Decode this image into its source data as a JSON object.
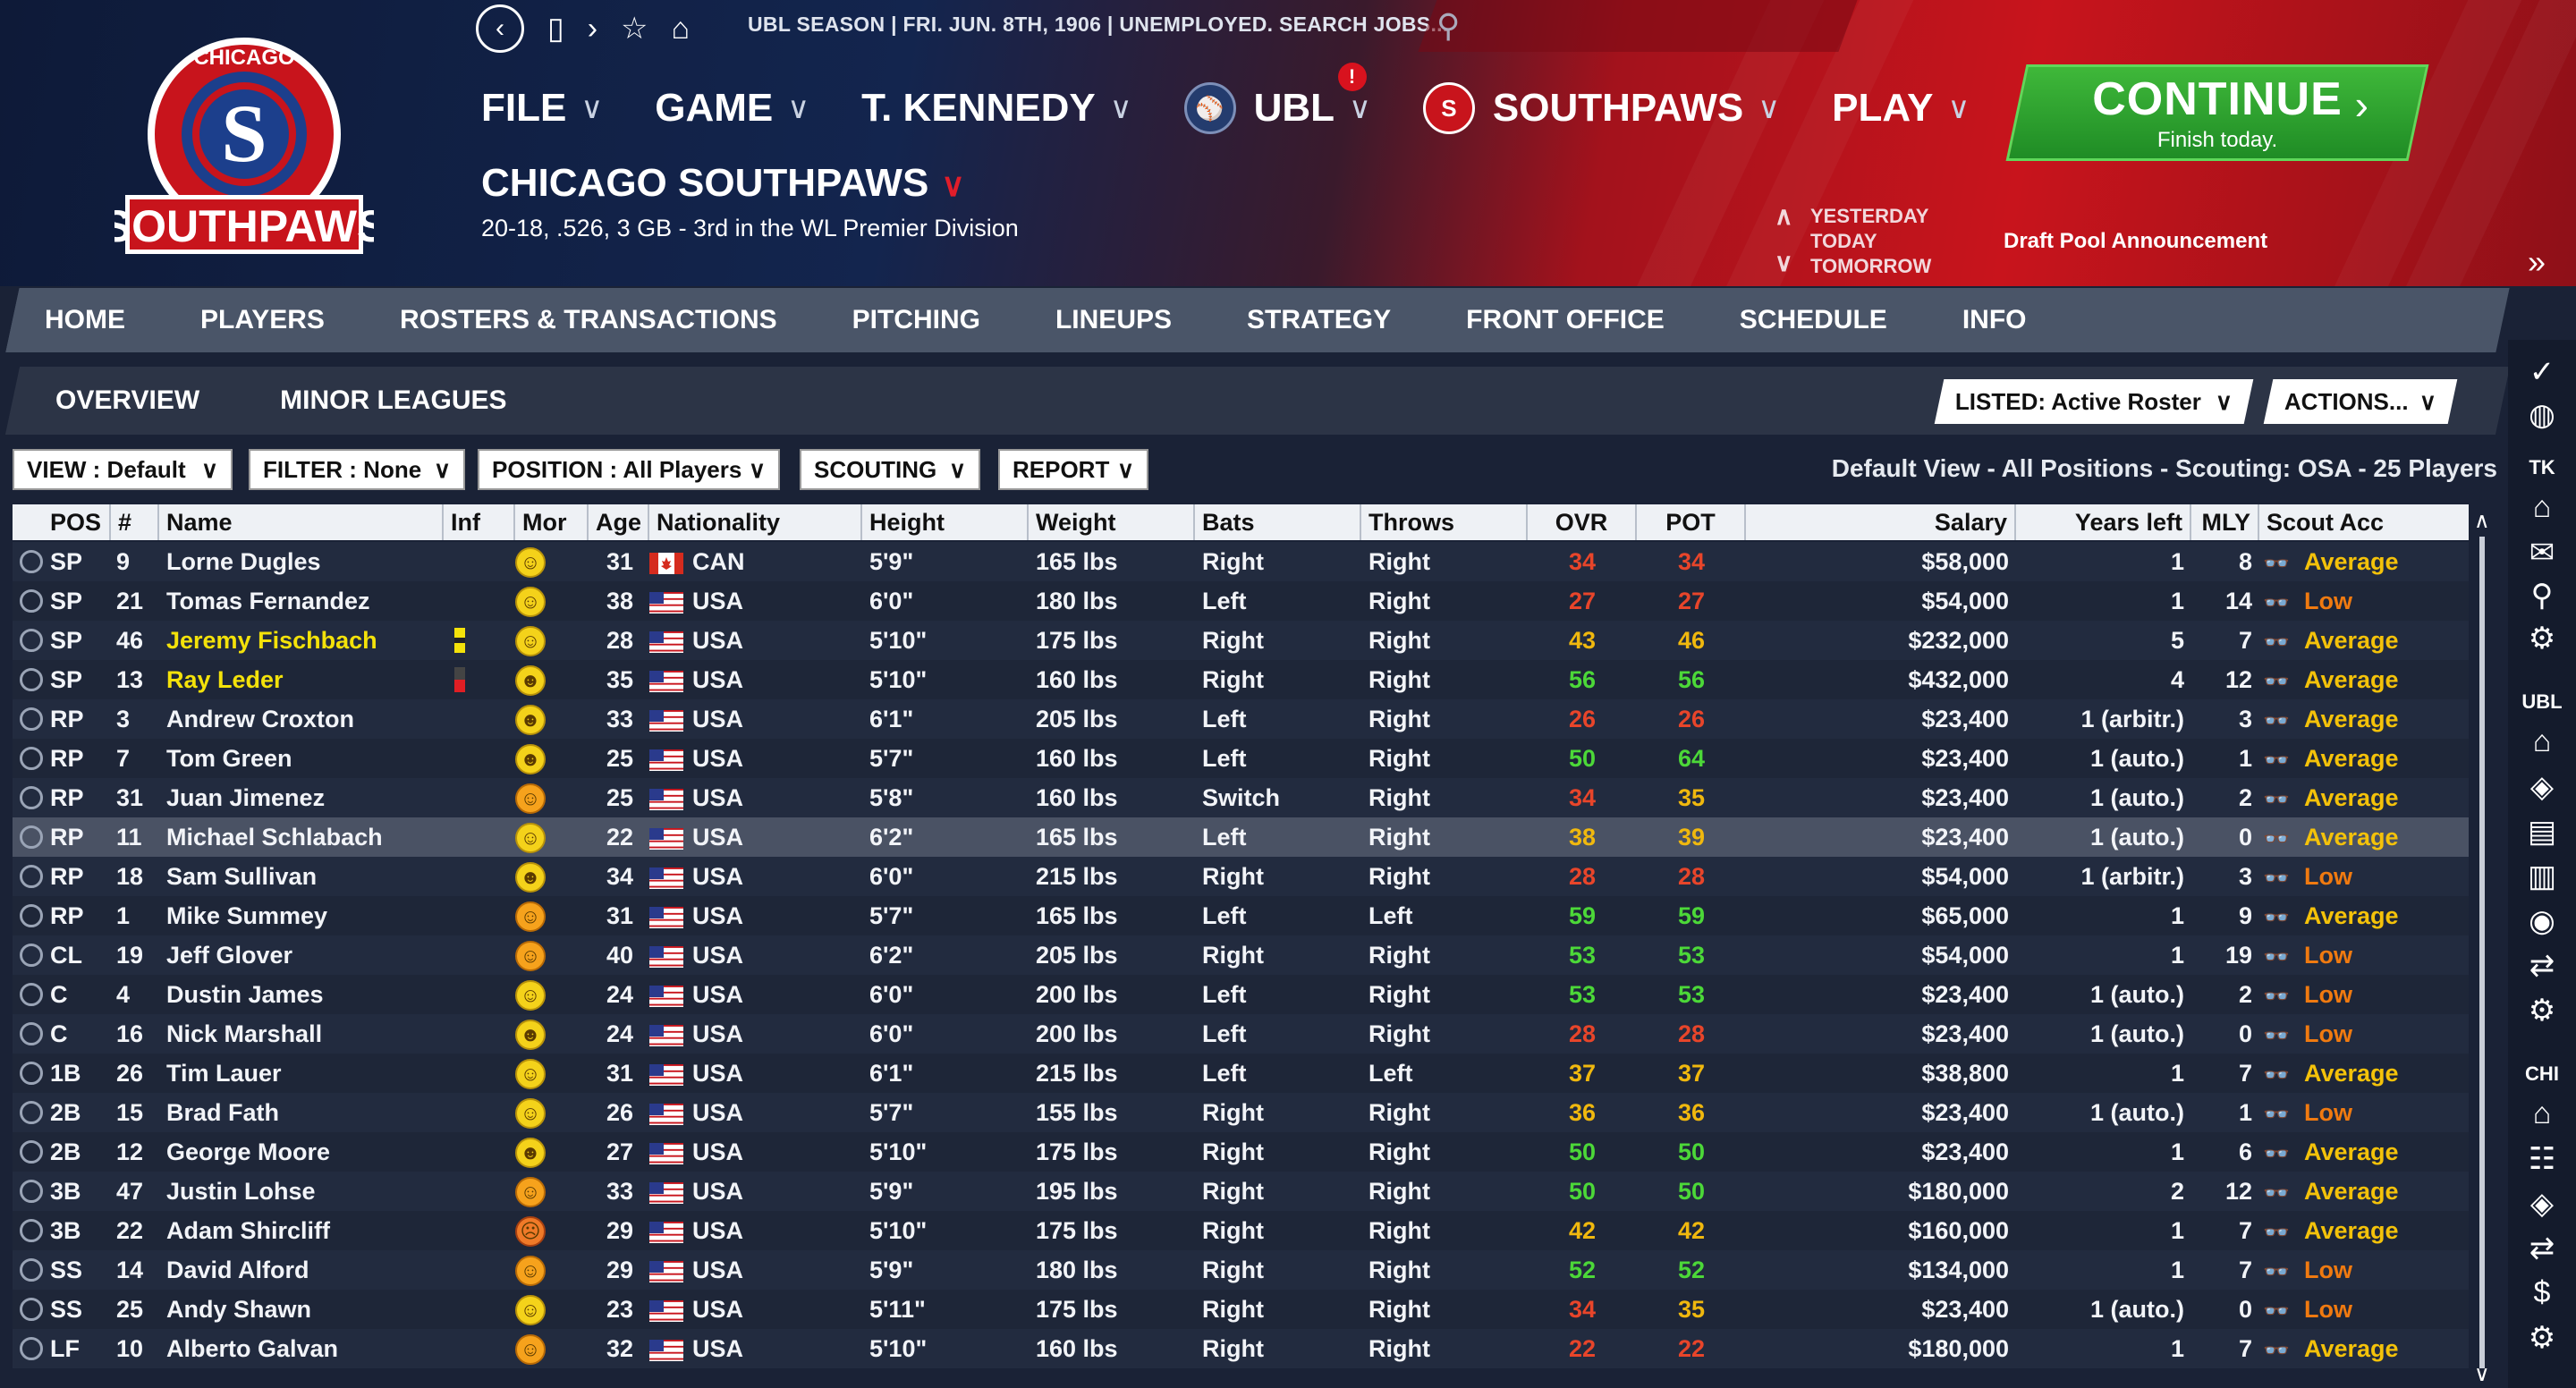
{
  "logo": {
    "top_text": "CHICAGO",
    "bottom_text": "SOUTHPAWS"
  },
  "topbar": {
    "ticker": "UBL SEASON  |  FRI. JUN. 8TH, 1906  |  UNEMPLOYED. SEARCH JOBS...",
    "search_placeholder": ""
  },
  "menu": {
    "file": "FILE",
    "game": "GAME",
    "manager": "T. KENNEDY",
    "league": "UBL",
    "league_alert": "!",
    "team": "SOUTHPAWS",
    "play": "PLAY"
  },
  "continue": {
    "label": "CONTINUE",
    "sub": "Finish today."
  },
  "team": {
    "name": "CHICAGO SOUTHPAWS",
    "record": "20-18, .526, 3 GB - 3rd in the WL Premier Division"
  },
  "dates": {
    "yesterday": "YESTERDAY",
    "today": "TODAY",
    "tomorrow": "TOMORROW",
    "event": "Draft Pool Announcement"
  },
  "tabs": [
    "HOME",
    "PLAYERS",
    "ROSTERS & TRANSACTIONS",
    "PITCHING",
    "LINEUPS",
    "STRATEGY",
    "FRONT OFFICE",
    "SCHEDULE",
    "INFO"
  ],
  "subtabs": [
    "OVERVIEW",
    "MINOR LEAGUES"
  ],
  "listed": "LISTED: Active Roster",
  "actions": "ACTIONS...",
  "filters": {
    "view": "VIEW : Default",
    "filter": "FILTER : None",
    "position": "POSITION : All Players",
    "scouting": "SCOUTING",
    "report": "REPORT"
  },
  "view_description": "Default View - All Positions - Scouting: OSA - 25 Players",
  "columns": [
    "POS",
    "#",
    "Name",
    "Inf",
    "Mor",
    "Age",
    "Nationality",
    "Height",
    "Weight",
    "Bats",
    "Throws",
    "OVR",
    "POT",
    "Salary",
    "Years left",
    "MLY",
    "Scout Acc"
  ],
  "colors": {
    "ovr_low": "#e8452a",
    "ovr_mid": "#f0b80e",
    "ovr_high": "#4cd838",
    "scout_avg": "#f4c20a",
    "scout_low": "#f07a10",
    "highlight_name": "#f4e20a"
  },
  "players": [
    {
      "pos": "SP",
      "num": "9",
      "name": "Lorne Dugles",
      "mor": "happy",
      "age": "31",
      "nat": "CAN",
      "height": "5'9\"",
      "weight": "165 lbs",
      "bats": "Right",
      "throws": "Right",
      "ovr": "34",
      "pot": "34",
      "salary": "$58,000",
      "years": "1",
      "mly": "8",
      "acc": "Average"
    },
    {
      "pos": "SP",
      "num": "21",
      "name": "Tomas Fernandez",
      "mor": "happy",
      "age": "38",
      "nat": "USA",
      "height": "6'0\"",
      "weight": "180 lbs",
      "bats": "Left",
      "throws": "Right",
      "ovr": "27",
      "pot": "27",
      "salary": "$54,000",
      "years": "1",
      "mly": "14",
      "acc": "Low"
    },
    {
      "pos": "SP",
      "num": "46",
      "name": "Jeremy Fischbach",
      "mor": "happy",
      "age": "28",
      "nat": "USA",
      "height": "5'10\"",
      "weight": "175 lbs",
      "bats": "Right",
      "throws": "Right",
      "ovr": "43",
      "pot": "46",
      "salary": "$232,000",
      "years": "5",
      "mly": "7",
      "acc": "Average",
      "hl": true,
      "inf": "yellow"
    },
    {
      "pos": "SP",
      "num": "13",
      "name": "Ray Leder",
      "mor": "grin",
      "age": "35",
      "nat": "USA",
      "height": "5'10\"",
      "weight": "160 lbs",
      "bats": "Right",
      "throws": "Right",
      "ovr": "56",
      "pot": "56",
      "salary": "$432,000",
      "years": "4",
      "mly": "12",
      "acc": "Average",
      "hl": true,
      "inf": "red"
    },
    {
      "pos": "RP",
      "num": "3",
      "name": "Andrew Croxton",
      "mor": "grin",
      "age": "33",
      "nat": "USA",
      "height": "6'1\"",
      "weight": "205 lbs",
      "bats": "Left",
      "throws": "Right",
      "ovr": "26",
      "pot": "26",
      "salary": "$23,400",
      "years": "1 (arbitr.)",
      "mly": "3",
      "acc": "Average"
    },
    {
      "pos": "RP",
      "num": "7",
      "name": "Tom Green",
      "mor": "grin",
      "age": "25",
      "nat": "USA",
      "height": "5'7\"",
      "weight": "160 lbs",
      "bats": "Left",
      "throws": "Right",
      "ovr": "50",
      "pot": "64",
      "salary": "$23,400",
      "years": "1 (auto.)",
      "mly": "1",
      "acc": "Average"
    },
    {
      "pos": "RP",
      "num": "31",
      "name": "Juan Jimenez",
      "mor": "smile",
      "age": "25",
      "nat": "USA",
      "height": "5'8\"",
      "weight": "160 lbs",
      "bats": "Switch",
      "throws": "Right",
      "ovr": "34",
      "pot": "35",
      "salary": "$23,400",
      "years": "1 (auto.)",
      "mly": "2",
      "acc": "Average"
    },
    {
      "pos": "RP",
      "num": "11",
      "name": "Michael Schlabach",
      "mor": "happy",
      "age": "22",
      "nat": "USA",
      "height": "6'2\"",
      "weight": "165 lbs",
      "bats": "Left",
      "throws": "Right",
      "ovr": "38",
      "pot": "39",
      "salary": "$23,400",
      "years": "1 (auto.)",
      "mly": "0",
      "acc": "Average",
      "sel": true
    },
    {
      "pos": "RP",
      "num": "18",
      "name": "Sam Sullivan",
      "mor": "grin",
      "age": "34",
      "nat": "USA",
      "height": "6'0\"",
      "weight": "215 lbs",
      "bats": "Right",
      "throws": "Right",
      "ovr": "28",
      "pot": "28",
      "salary": "$54,000",
      "years": "1 (arbitr.)",
      "mly": "3",
      "acc": "Low"
    },
    {
      "pos": "RP",
      "num": "1",
      "name": "Mike Summey",
      "mor": "smile",
      "age": "31",
      "nat": "USA",
      "height": "5'7\"",
      "weight": "165 lbs",
      "bats": "Left",
      "throws": "Left",
      "ovr": "59",
      "pot": "59",
      "salary": "$65,000",
      "years": "1",
      "mly": "9",
      "acc": "Average"
    },
    {
      "pos": "CL",
      "num": "19",
      "name": "Jeff Glover",
      "mor": "smile",
      "age": "40",
      "nat": "USA",
      "height": "6'2\"",
      "weight": "205 lbs",
      "bats": "Right",
      "throws": "Right",
      "ovr": "53",
      "pot": "53",
      "salary": "$54,000",
      "years": "1",
      "mly": "19",
      "acc": "Low"
    },
    {
      "pos": "C",
      "num": "4",
      "name": "Dustin James",
      "mor": "happy",
      "age": "24",
      "nat": "USA",
      "height": "6'0\"",
      "weight": "200 lbs",
      "bats": "Left",
      "throws": "Right",
      "ovr": "53",
      "pot": "53",
      "salary": "$23,400",
      "years": "1 (auto.)",
      "mly": "2",
      "acc": "Low"
    },
    {
      "pos": "C",
      "num": "16",
      "name": "Nick Marshall",
      "mor": "grin",
      "age": "24",
      "nat": "USA",
      "height": "6'0\"",
      "weight": "200 lbs",
      "bats": "Left",
      "throws": "Right",
      "ovr": "28",
      "pot": "28",
      "salary": "$23,400",
      "years": "1 (auto.)",
      "mly": "0",
      "acc": "Low"
    },
    {
      "pos": "1B",
      "num": "26",
      "name": "Tim Lauer",
      "mor": "happy",
      "age": "31",
      "nat": "USA",
      "height": "6'1\"",
      "weight": "215 lbs",
      "bats": "Left",
      "throws": "Left",
      "ovr": "37",
      "pot": "37",
      "salary": "$38,800",
      "years": "1",
      "mly": "7",
      "acc": "Average"
    },
    {
      "pos": "2B",
      "num": "15",
      "name": "Brad Fath",
      "mor": "happy",
      "age": "26",
      "nat": "USA",
      "height": "5'7\"",
      "weight": "155 lbs",
      "bats": "Right",
      "throws": "Right",
      "ovr": "36",
      "pot": "36",
      "salary": "$23,400",
      "years": "1 (auto.)",
      "mly": "1",
      "acc": "Low"
    },
    {
      "pos": "2B",
      "num": "12",
      "name": "George Moore",
      "mor": "grin",
      "age": "27",
      "nat": "USA",
      "height": "5'10\"",
      "weight": "175 lbs",
      "bats": "Right",
      "throws": "Right",
      "ovr": "50",
      "pot": "50",
      "salary": "$23,400",
      "years": "1",
      "mly": "6",
      "acc": "Average"
    },
    {
      "pos": "3B",
      "num": "47",
      "name": "Justin Lohse",
      "mor": "smile",
      "age": "33",
      "nat": "USA",
      "height": "5'9\"",
      "weight": "195 lbs",
      "bats": "Right",
      "throws": "Right",
      "ovr": "50",
      "pot": "50",
      "salary": "$180,000",
      "years": "2",
      "mly": "12",
      "acc": "Average"
    },
    {
      "pos": "3B",
      "num": "22",
      "name": "Adam Shircliff",
      "mor": "sad",
      "age": "29",
      "nat": "USA",
      "height": "5'10\"",
      "weight": "175 lbs",
      "bats": "Right",
      "throws": "Right",
      "ovr": "42",
      "pot": "42",
      "salary": "$160,000",
      "years": "1",
      "mly": "7",
      "acc": "Average"
    },
    {
      "pos": "SS",
      "num": "14",
      "name": "David Alford",
      "mor": "smile",
      "age": "29",
      "nat": "USA",
      "height": "5'9\"",
      "weight": "180 lbs",
      "bats": "Right",
      "throws": "Right",
      "ovr": "52",
      "pot": "52",
      "salary": "$134,000",
      "years": "1",
      "mly": "7",
      "acc": "Low"
    },
    {
      "pos": "SS",
      "num": "25",
      "name": "Andy Shawn",
      "mor": "happy",
      "age": "23",
      "nat": "USA",
      "height": "5'11\"",
      "weight": "175 lbs",
      "bats": "Right",
      "throws": "Right",
      "ovr": "34",
      "pot": "35",
      "salary": "$23,400",
      "years": "1 (auto.)",
      "mly": "0",
      "acc": "Low"
    },
    {
      "pos": "LF",
      "num": "10",
      "name": "Alberto Galvan",
      "mor": "smile",
      "age": "32",
      "nat": "USA",
      "height": "5'10\"",
      "weight": "160 lbs",
      "bats": "Right",
      "throws": "Right",
      "ovr": "22",
      "pot": "22",
      "salary": "$180,000",
      "years": "1",
      "mly": "7",
      "acc": "Average"
    }
  ],
  "sidebar": {
    "tk": "TK",
    "ubl": "UBL",
    "chi": "CHI"
  }
}
